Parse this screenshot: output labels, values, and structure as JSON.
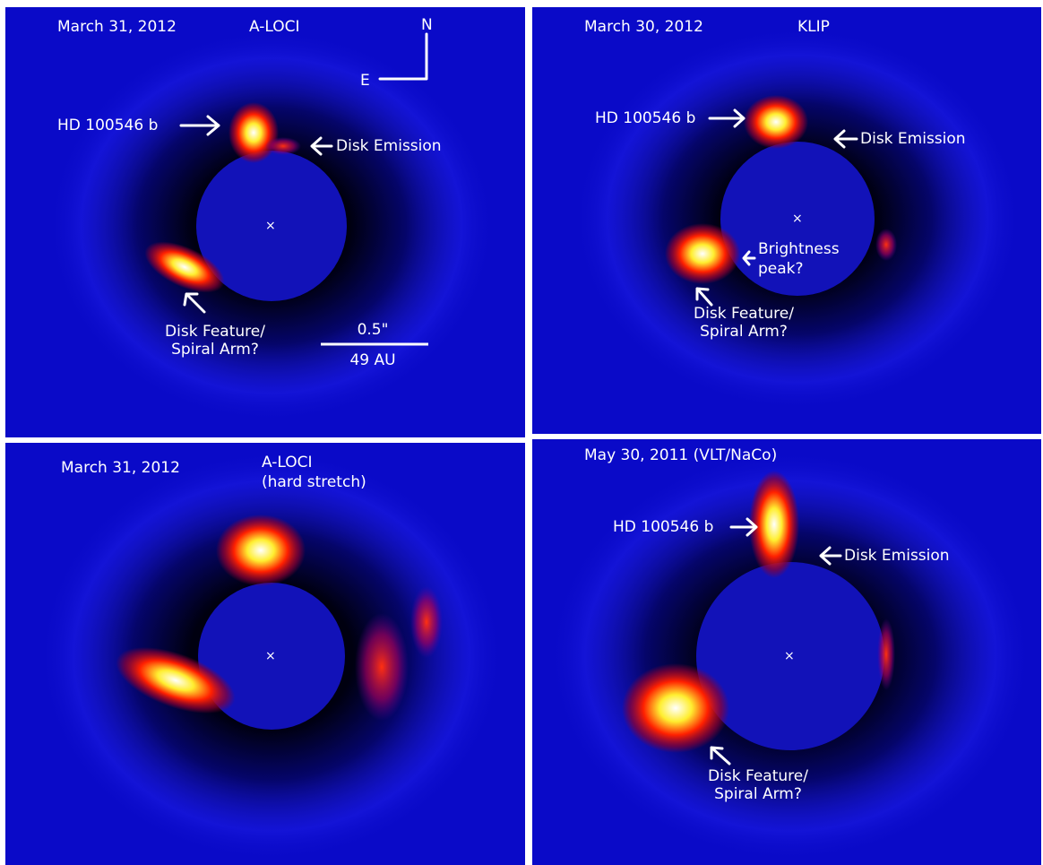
{
  "panels": [
    {
      "date": "March 31, 2012",
      "method": "A-LOCI",
      "north": "N",
      "east": "E",
      "planet": "HD 100546 b",
      "disk_emission": "Disk Emission",
      "disk_feature": [
        "Disk Feature/",
        "Spiral Arm?"
      ],
      "scale_angle": "0.5\"",
      "scale_distance": "49 AU"
    },
    {
      "date": "March 30, 2012",
      "method": "KLIP",
      "planet": "HD 100546 b",
      "disk_emission": "Disk Emission",
      "brightness_peak": [
        "Brightness",
        "peak?"
      ],
      "disk_feature": [
        "Disk Feature/",
        "Spiral Arm?"
      ]
    },
    {
      "date": "March 31, 2012",
      "method": [
        "A-LOCI",
        "(hard stretch)"
      ]
    },
    {
      "date": "May 30, 2011 (VLT/NaCo)",
      "planet": "HD 100546 b",
      "disk_emission": "Disk Emission",
      "disk_feature": [
        "Disk Feature/",
        "Spiral Arm?"
      ]
    }
  ]
}
